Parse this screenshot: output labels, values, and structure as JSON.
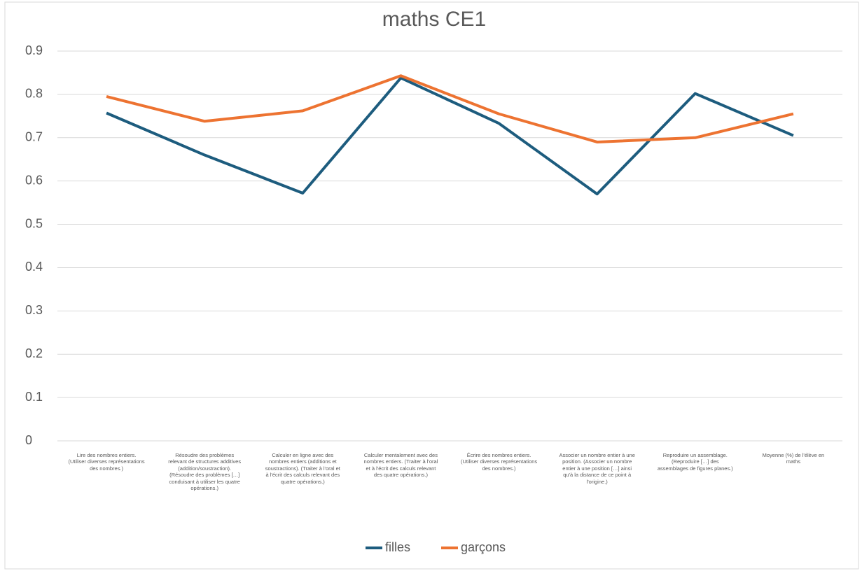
{
  "chart_data": {
    "type": "line",
    "title": "maths CE1",
    "categories": [
      "Lire des nombres entiers. (Utiliser diverses représentations des nombres.)",
      "Résoudre des problèmes relevant de structures additives (addition/soustraction). (Résoudre des problèmes […] conduisant à utiliser les quatre opérations.)",
      "Calculer en ligne avec des nombres entiers (additions et soustractions). (Traiter à l'oral et à l'écrit des calculs relevant des quatre opérations.)",
      "Calculer mentalement avec des nombres entiers. (Traiter à l'oral et à l'écrit des calculs relevant des quatre opérations.)",
      "Écrire des nombres entiers. (Utiliser diverses représentations des nombres.)",
      "Associer un nombre entier à une position. (Associer un nombre entier à une position […] ainsi qu'à la distance de ce point à l'origine.)",
      "Reproduire un assemblage. (Reproduire […] des assemblages de figures planes.)",
      "Moyenne (%) de l'élève en maths"
    ],
    "series": [
      {
        "name": "filles",
        "color": "#1d5c7e",
        "values": [
          0.757,
          0.66,
          0.572,
          0.838,
          0.733,
          0.57,
          0.802,
          0.705
        ]
      },
      {
        "name": "garçons",
        "color": "#ed7331",
        "values": [
          0.795,
          0.738,
          0.762,
          0.843,
          0.755,
          0.69,
          0.7,
          0.755
        ]
      }
    ],
    "ylim": [
      0,
      0.9
    ],
    "yticks": [
      0,
      0.1,
      0.2,
      0.3,
      0.4,
      0.5,
      0.6,
      0.7,
      0.8,
      0.9
    ],
    "grid": true,
    "legend": "bottom"
  }
}
